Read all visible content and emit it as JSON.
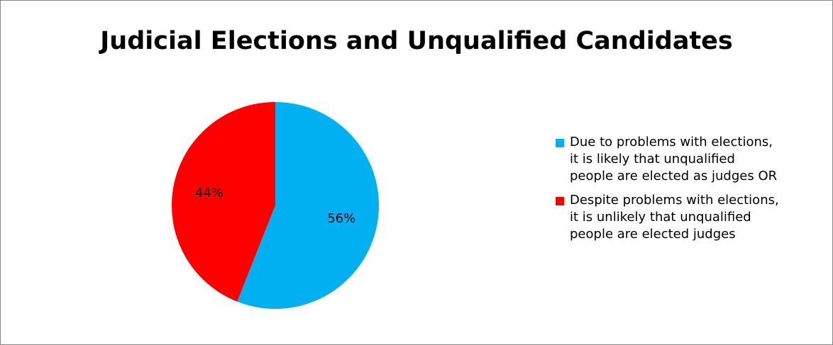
{
  "chart_data": {
    "type": "pie",
    "title": "Judicial Elections and Unqualified Candidates",
    "categories": [
      "Due to problems with elections, it is likely that unqualified people are elected as judges OR",
      "Despite problems with elections, it is unlikely that unqualified people are elected judges"
    ],
    "values": [
      56,
      44
    ],
    "value_labels": [
      "56%",
      "44%"
    ],
    "colors": [
      "#00B0F0",
      "#FF0000"
    ],
    "legend_position": "right"
  },
  "legend_lines": [
    [
      "Due to problems with elections,",
      "it is likely that unqualified",
      "people are elected as judges OR"
    ],
    [
      "Despite problems with elections,",
      "it is unlikely that unqualified",
      "people are elected judges"
    ]
  ]
}
